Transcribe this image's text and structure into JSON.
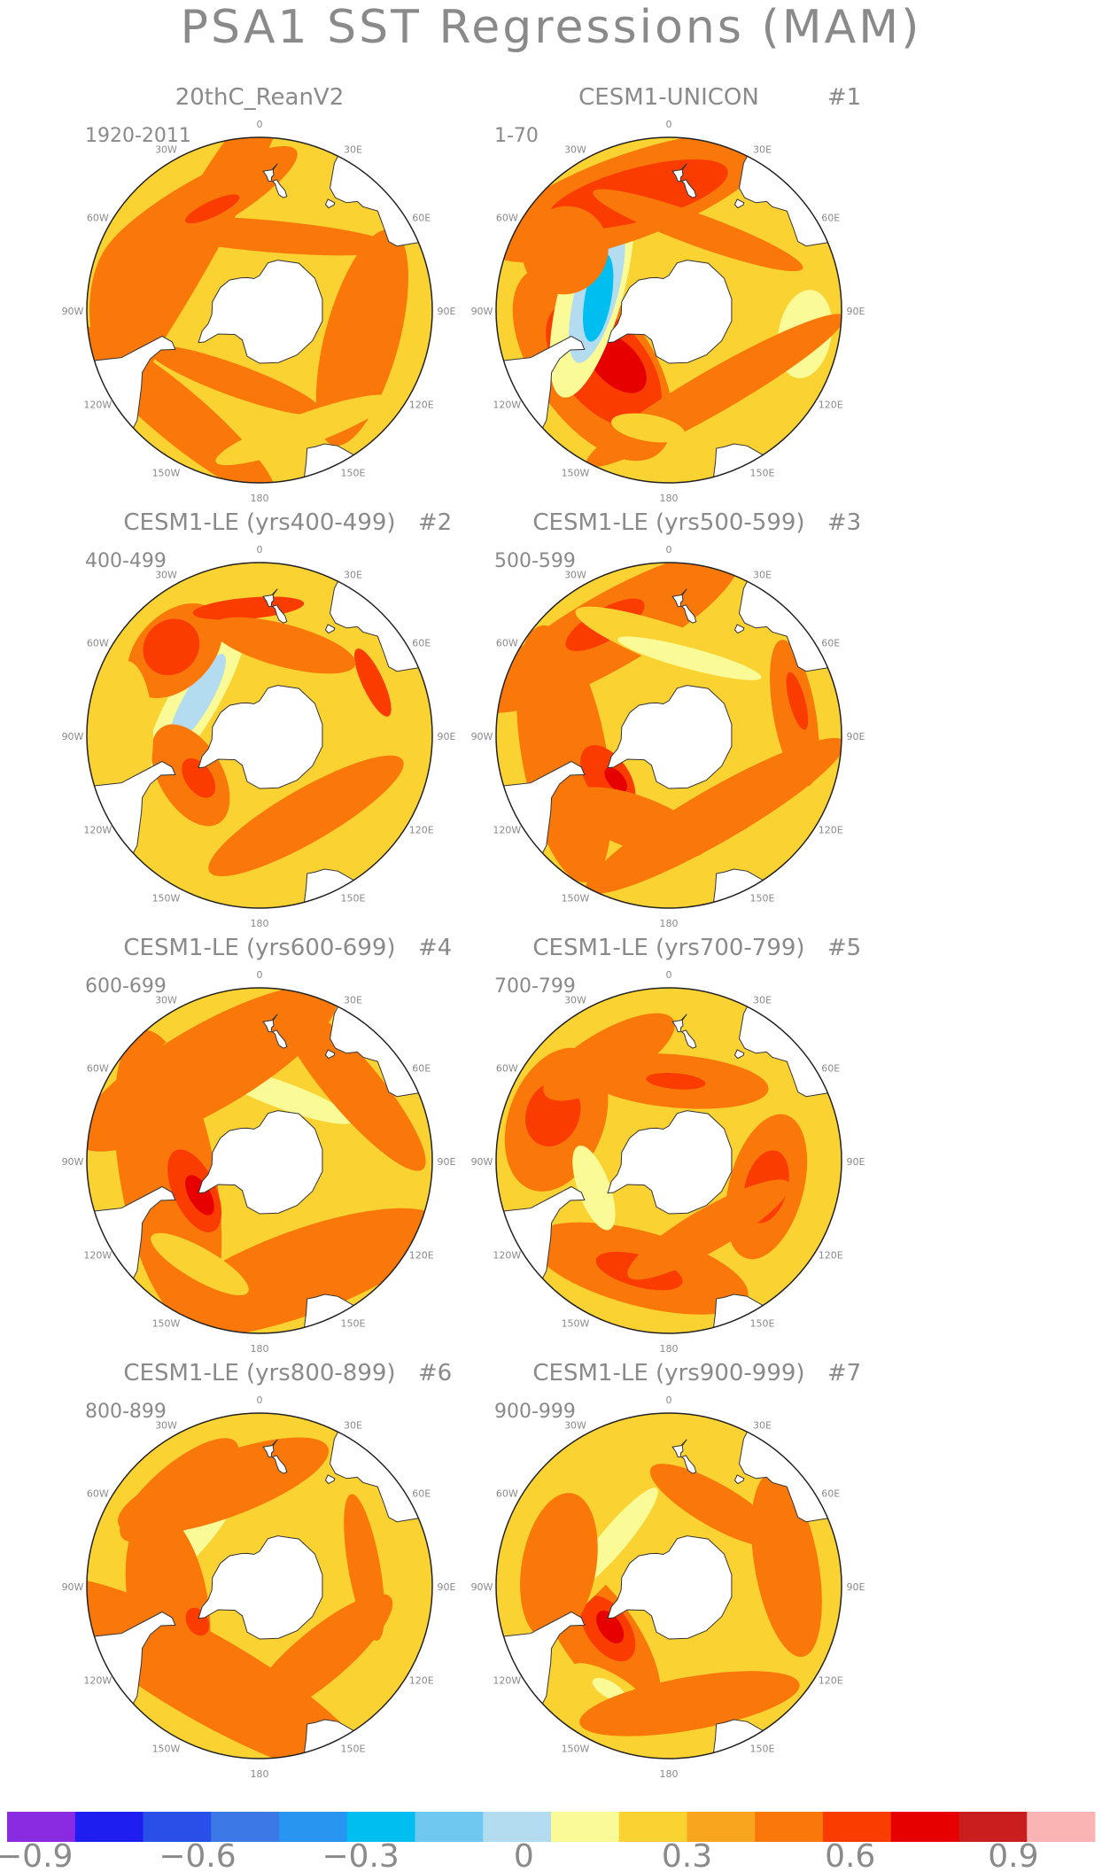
{
  "figure": {
    "title": "PSA1 SST Regressions (MAM)",
    "colors": {
      "text": "#8a8a8a",
      "land": "#ffffff",
      "coastline": "#333333"
    }
  },
  "chart_data": {
    "type": "heatmap",
    "projection": "south-polar-stereographic",
    "longitude_labels": [
      "0",
      "30E",
      "60E",
      "90E",
      "120E",
      "150E",
      "180",
      "150W",
      "120W",
      "90W",
      "60W",
      "30W"
    ],
    "panels": [
      {
        "title": "20thC_ReanV2",
        "tag": "",
        "years": "1920-2011",
        "blobs": [
          {
            "lon": -40,
            "lat": -40,
            "level": 0.1,
            "rx": 35,
            "ry": 10
          },
          {
            "lon": 75,
            "lat": -50,
            "level": 0.1,
            "rx": 30,
            "ry": 14
          },
          {
            "lon": -120,
            "lat": -55,
            "level": 0.1,
            "rx": 60,
            "ry": 10
          },
          {
            "lon": -150,
            "lat": -45,
            "level": 0.1,
            "rx": 30,
            "ry": 10
          },
          {
            "lon": 175,
            "lat": -62,
            "level": 0.1,
            "rx": 35,
            "ry": 6
          },
          {
            "lon": -90,
            "lat": -40,
            "level": 0.1,
            "rx": 20,
            "ry": 14
          },
          {
            "lon": -20,
            "lat": -62,
            "level": 0.1,
            "rx": 25,
            "ry": 6
          },
          {
            "lon": 20,
            "lat": -42,
            "level": -0.1,
            "rx": 25,
            "ry": 6
          },
          {
            "lon": -155,
            "lat": -48,
            "level": 0.2,
            "rx": 8,
            "ry": 3
          }
        ]
      },
      {
        "title": "CESM1-UNICON",
        "tag": "#1",
        "years": "1-70",
        "blobs": [
          {
            "lon": -55,
            "lat": -55,
            "level": 0.1,
            "rx": 30,
            "ry": 22
          },
          {
            "lon": -50,
            "lat": -58,
            "level": 0.2,
            "rx": 20,
            "ry": 16
          },
          {
            "lon": -45,
            "lat": -62,
            "level": 0.3,
            "rx": 10,
            "ry": 8
          },
          {
            "lon": -105,
            "lat": -60,
            "level": -0.2,
            "rx": 30,
            "ry": 12
          },
          {
            "lon": -105,
            "lat": -62,
            "level": -0.3,
            "rx": 20,
            "ry": 8
          },
          {
            "lon": -100,
            "lat": -63,
            "level": -0.5,
            "rx": 12,
            "ry": 5
          },
          {
            "lon": -160,
            "lat": -45,
            "level": 0.1,
            "rx": 40,
            "ry": 16
          },
          {
            "lon": -165,
            "lat": -45,
            "level": 0.2,
            "rx": 25,
            "ry": 10
          },
          {
            "lon": -120,
            "lat": -45,
            "level": 0.1,
            "rx": 12,
            "ry": 16
          },
          {
            "lon": 80,
            "lat": -38,
            "level": -0.2,
            "rx": 12,
            "ry": 10
          },
          {
            "lon": 30,
            "lat": -55,
            "level": 0.1,
            "rx": 40,
            "ry": 8
          },
          {
            "lon": 160,
            "lat": -58,
            "level": 0.1,
            "rx": 30,
            "ry": 6
          },
          {
            "lon": -10,
            "lat": -45,
            "level": -0.1,
            "rx": 10,
            "ry": 5
          }
        ]
      },
      {
        "title": "CESM1-LE (yrs400-499)",
        "tag": "#2",
        "years": "400-499",
        "blobs": [
          {
            "lon": -120,
            "lat": -60,
            "level": -0.1,
            "rx": 40,
            "ry": 14
          },
          {
            "lon": -120,
            "lat": -62,
            "level": -0.2,
            "rx": 25,
            "ry": 9
          },
          {
            "lon": -120,
            "lat": -63,
            "level": -0.3,
            "rx": 14,
            "ry": 5
          },
          {
            "lon": -135,
            "lat": -45,
            "level": 0.1,
            "rx": 15,
            "ry": 14
          },
          {
            "lon": -135,
            "lat": -43,
            "level": 0.2,
            "rx": 8,
            "ry": 10
          },
          {
            "lon": -175,
            "lat": -42,
            "level": 0.2,
            "rx": 15,
            "ry": 4
          },
          {
            "lon": -60,
            "lat": -60,
            "level": 0.1,
            "rx": 15,
            "ry": 12
          },
          {
            "lon": -55,
            "lat": -62,
            "level": 0.2,
            "rx": 6,
            "ry": 5
          },
          {
            "lon": 115,
            "lat": -43,
            "level": 0.2,
            "rx": 10,
            "ry": 4
          },
          {
            "lon": 30,
            "lat": -55,
            "level": 0.1,
            "rx": 30,
            "ry": 10
          },
          {
            "lon": -90,
            "lat": -40,
            "level": -0.1,
            "rx": 20,
            "ry": 10
          },
          {
            "lon": 165,
            "lat": -55,
            "level": 0.1,
            "rx": 20,
            "ry": 8
          }
        ]
      },
      {
        "title": "CESM1-LE (yrs500-599)",
        "tag": "#3",
        "years": "500-599",
        "blobs": [
          {
            "lon": -80,
            "lat": -50,
            "level": 0.1,
            "rx": 35,
            "ry": 16
          },
          {
            "lon": -55,
            "lat": -62,
            "level": 0.2,
            "rx": 10,
            "ry": 8
          },
          {
            "lon": -50,
            "lat": -64,
            "level": 0.3,
            "rx": 4,
            "ry": 3
          },
          {
            "lon": -150,
            "lat": -45,
            "level": 0.1,
            "rx": 40,
            "ry": 14
          },
          {
            "lon": -150,
            "lat": -42,
            "level": 0.2,
            "rx": 12,
            "ry": 6
          },
          {
            "lon": 160,
            "lat": -58,
            "level": -0.1,
            "rx": 35,
            "ry": 8
          },
          {
            "lon": 165,
            "lat": -60,
            "level": -0.2,
            "rx": 20,
            "ry": 4
          },
          {
            "lon": 30,
            "lat": -55,
            "level": 0.1,
            "rx": 40,
            "ry": 10
          },
          {
            "lon": 100,
            "lat": -42,
            "level": 0.1,
            "rx": 20,
            "ry": 8
          },
          {
            "lon": 105,
            "lat": -40,
            "level": 0.2,
            "rx": 8,
            "ry": 3
          },
          {
            "lon": -20,
            "lat": -55,
            "level": 0.1,
            "rx": 20,
            "ry": 10
          }
        ]
      },
      {
        "title": "CESM1-LE (yrs600-699)",
        "tag": "#4",
        "years": "600-699",
        "blobs": [
          {
            "lon": -80,
            "lat": -55,
            "level": 0.1,
            "rx": 40,
            "ry": 18
          },
          {
            "lon": -65,
            "lat": -63,
            "level": 0.2,
            "rx": 12,
            "ry": 8
          },
          {
            "lon": -60,
            "lat": -64,
            "level": 0.3,
            "rx": 6,
            "ry": 4
          },
          {
            "lon": 160,
            "lat": -62,
            "level": -0.1,
            "rx": 35,
            "ry": 10
          },
          {
            "lon": 160,
            "lat": -64,
            "level": -0.2,
            "rx": 20,
            "ry": 5
          },
          {
            "lon": 80,
            "lat": -55,
            "level": -0.1,
            "rx": 15,
            "ry": 8
          },
          {
            "lon": 20,
            "lat": -45,
            "level": 0.1,
            "rx": 40,
            "ry": 16
          },
          {
            "lon": -150,
            "lat": -50,
            "level": 0.1,
            "rx": 40,
            "ry": 16
          },
          {
            "lon": 130,
            "lat": -45,
            "level": 0.1,
            "rx": 30,
            "ry": 10
          },
          {
            "lon": -30,
            "lat": -45,
            "level": -0.1,
            "rx": 15,
            "ry": 6
          }
        ]
      },
      {
        "title": "CESM1-LE (yrs700-799)",
        "tag": "#5",
        "years": "700-799",
        "blobs": [
          {
            "lon": -15,
            "lat": -48,
            "level": 0.1,
            "rx": 30,
            "ry": 14
          },
          {
            "lon": -15,
            "lat": -47,
            "level": 0.2,
            "rx": 12,
            "ry": 6
          },
          {
            "lon": 75,
            "lat": -52,
            "level": 0.1,
            "rx": 20,
            "ry": 14
          },
          {
            "lon": 75,
            "lat": -52,
            "level": 0.2,
            "rx": 10,
            "ry": 8
          },
          {
            "lon": -110,
            "lat": -45,
            "level": 0.1,
            "rx": 20,
            "ry": 18
          },
          {
            "lon": -112,
            "lat": -43,
            "level": 0.2,
            "rx": 9,
            "ry": 10
          },
          {
            "lon": 175,
            "lat": -60,
            "level": 0.1,
            "rx": 25,
            "ry": 10
          },
          {
            "lon": 175,
            "lat": -60,
            "level": 0.2,
            "rx": 8,
            "ry": 3
          },
          {
            "lon": -70,
            "lat": -60,
            "level": -0.2,
            "rx": 12,
            "ry": 6
          },
          {
            "lon": -150,
            "lat": -45,
            "level": 0.1,
            "rx": 20,
            "ry": 10
          },
          {
            "lon": 30,
            "lat": -60,
            "level": 0.1,
            "rx": 25,
            "ry": 8
          }
        ]
      },
      {
        "title": "CESM1-LE (yrs800-899)",
        "tag": "#6",
        "years": "800-899",
        "blobs": [
          {
            "lon": -130,
            "lat": -58,
            "level": -0.1,
            "rx": 30,
            "ry": 12
          },
          {
            "lon": -130,
            "lat": -60,
            "level": -0.2,
            "rx": 15,
            "ry": 5
          },
          {
            "lon": -140,
            "lat": -43,
            "level": 0.1,
            "rx": 20,
            "ry": 10
          },
          {
            "lon": -140,
            "lat": -43,
            "level": 0.2,
            "rx": 10,
            "ry": 5
          },
          {
            "lon": -30,
            "lat": -50,
            "level": 0.1,
            "rx": 50,
            "ry": 16
          },
          {
            "lon": -80,
            "lat": -55,
            "level": 0.1,
            "rx": 25,
            "ry": 15
          },
          {
            "lon": -160,
            "lat": -50,
            "level": 0.1,
            "rx": 30,
            "ry": 12
          },
          {
            "lon": 40,
            "lat": -55,
            "level": 0.1,
            "rx": 25,
            "ry": 10
          },
          {
            "lon": 100,
            "lat": -50,
            "level": 0.1,
            "rx": 20,
            "ry": 6
          },
          {
            "lon": -60,
            "lat": -63,
            "level": 0.2,
            "rx": 4,
            "ry": 4
          }
        ]
      },
      {
        "title": "CESM1-LE (yrs900-999)",
        "tag": "#7",
        "years": "900-999",
        "blobs": [
          {
            "lon": -55,
            "lat": -58,
            "level": 0.1,
            "rx": 25,
            "ry": 14
          },
          {
            "lon": -55,
            "lat": -62,
            "level": 0.2,
            "rx": 10,
            "ry": 8
          },
          {
            "lon": -55,
            "lat": -63,
            "level": 0.3,
            "rx": 5,
            "ry": 4
          },
          {
            "lon": -30,
            "lat": -45,
            "level": -0.1,
            "rx": 12,
            "ry": 6
          },
          {
            "lon": -30,
            "lat": -45,
            "level": -0.2,
            "rx": 5,
            "ry": 3
          },
          {
            "lon": -130,
            "lat": -62,
            "level": -0.1,
            "rx": 35,
            "ry": 10
          },
          {
            "lon": -130,
            "lat": -63,
            "level": -0.2,
            "rx": 18,
            "ry": 5
          },
          {
            "lon": -100,
            "lat": -48,
            "level": 0.1,
            "rx": 20,
            "ry": 14
          },
          {
            "lon": 10,
            "lat": -45,
            "level": 0.1,
            "rx": 30,
            "ry": 10
          },
          {
            "lon": 100,
            "lat": -45,
            "level": 0.1,
            "rx": 25,
            "ry": 12
          },
          {
            "lon": 150,
            "lat": -55,
            "level": 0.1,
            "rx": 20,
            "ry": 8
          }
        ]
      }
    ],
    "colorbar": {
      "tick_labels": [
        "−0.9",
        "−0.6",
        "−0.3",
        "0",
        "0.3",
        "0.6",
        "0.9"
      ],
      "tick_values": [
        -0.9,
        -0.6,
        -0.3,
        0,
        0.3,
        0.6,
        0.9
      ],
      "bounds": [
        -1.0,
        -0.9,
        -0.8,
        -0.7,
        -0.6,
        -0.5,
        -0.4,
        -0.3,
        -0.2,
        -0.1,
        0,
        0.1,
        0.2,
        0.3,
        0.4,
        0.5,
        0.6,
        0.7,
        0.8,
        0.9,
        1.0
      ],
      "colors": [
        "#8a2be2",
        "#1e1ef0",
        "#2850e8",
        "#3c78e6",
        "#2896f0",
        "#00bef0",
        "#6ec8f0",
        "#b4dcf0",
        "#fafa96",
        "#fad232",
        "#faa51e",
        "#fa780a",
        "#fa3c00",
        "#e60000",
        "#c81e1e",
        "#fab4b4"
      ]
    }
  }
}
